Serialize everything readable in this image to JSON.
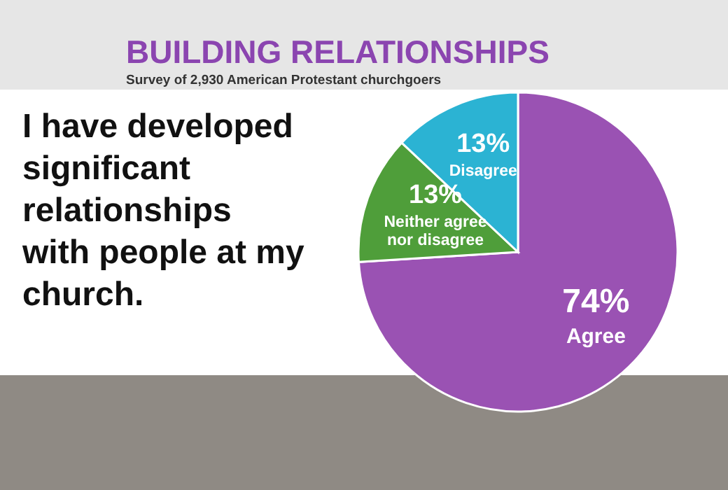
{
  "chart_data": {
    "type": "pie",
    "title": "BUILDING RELATIONSHIPS",
    "subtitle": "Survey of 2,930 American Protestant churchgoers",
    "annotations": [
      "I have developed significant relationships with people at my church."
    ],
    "categories": [
      "Agree",
      "Neither agree nor disagree",
      "Disagree"
    ],
    "values": [
      74,
      13,
      13
    ],
    "value_labels": [
      "74%",
      "13%",
      "13%"
    ],
    "colors": [
      "#9a52b3",
      "#4f9e3a",
      "#2bb3d3"
    ],
    "legend": false
  }
}
